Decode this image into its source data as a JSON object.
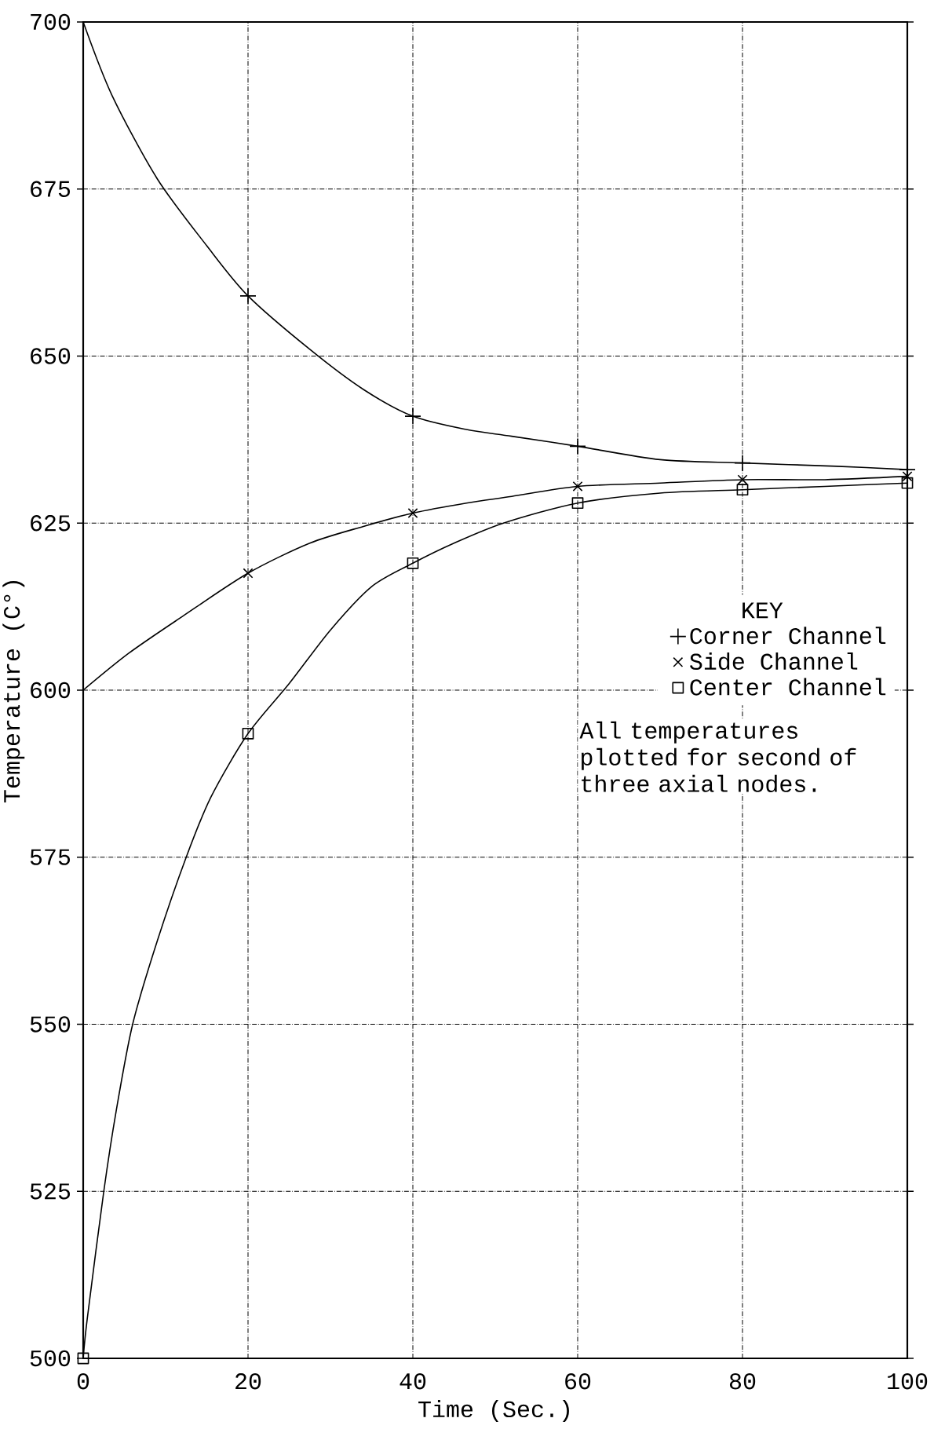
{
  "chart_data": {
    "type": "line",
    "xlabel": "Time (Sec.)",
    "ylabel": "Temperature (C°)",
    "legend_title": "KEY",
    "x": [
      0,
      20,
      40,
      60,
      80,
      100
    ],
    "series": [
      {
        "color": "#000000",
        "x": [
          0,
          3.5,
          9,
          15,
          20,
          27.5,
          34,
          40,
          46.5,
          52,
          60,
          70,
          80,
          91.5,
          100
        ],
        "values": [
          700,
          689,
          676.5,
          666.5,
          659,
          651,
          645,
          641,
          639,
          638,
          636.5,
          634.5,
          634,
          633.5,
          633
        ]
      },
      {
        "color": "#000000",
        "x": [
          0,
          5.5,
          12,
          20,
          27.5,
          34,
          40,
          46.5,
          52,
          60,
          70,
          80,
          90,
          100
        ],
        "values": [
          600,
          605.5,
          611,
          617.5,
          622,
          624.5,
          626.5,
          628,
          629,
          630.5,
          631,
          631.5,
          631.5,
          632
        ]
      },
      {
        "color": "#000000",
        "x": [
          0,
          0.5,
          2.5,
          4,
          6,
          9,
          12.5,
          15.5,
          20,
          25,
          30,
          35,
          40,
          45,
          51,
          60,
          70,
          80,
          90,
          100
        ],
        "values": [
          500,
          506,
          525,
          537,
          550,
          562.5,
          575,
          584,
          593.5,
          601,
          609,
          615.5,
          619,
          622,
          625,
          628,
          629.5,
          630,
          630.5,
          631
        ]
      },
      {
        "type": "scatter",
        "name": "Corner Channel",
        "color": "#000000",
        "marker": "plus",
        "x": [
          20,
          40,
          60,
          80,
          100
        ],
        "values": [
          659,
          641,
          636.5,
          634,
          633
        ]
      },
      {
        "type": "scatter",
        "name": "Side Channel",
        "color": "#000000",
        "marker": "cross",
        "x": [
          20,
          40,
          60,
          80,
          100
        ],
        "values": [
          617.5,
          626.5,
          630.5,
          631.5,
          632
        ]
      },
      {
        "type": "scatter",
        "name": "Center Channel",
        "color": "#000000",
        "marker": "square",
        "values": [
          500,
          593.5,
          619,
          628,
          630,
          631
        ]
      }
    ],
    "xlim": [
      0,
      100
    ],
    "ylim": [
      500,
      700
    ],
    "xticks": [
      0,
      20,
      40,
      60,
      80,
      100
    ],
    "yticks": [
      500,
      525,
      550,
      575,
      600,
      625,
      650,
      675,
      700
    ],
    "grid": true,
    "legend": "right",
    "line_style": "solid",
    "annotations": [
      "All temperatures plotted for second of three axial nodes."
    ]
  }
}
